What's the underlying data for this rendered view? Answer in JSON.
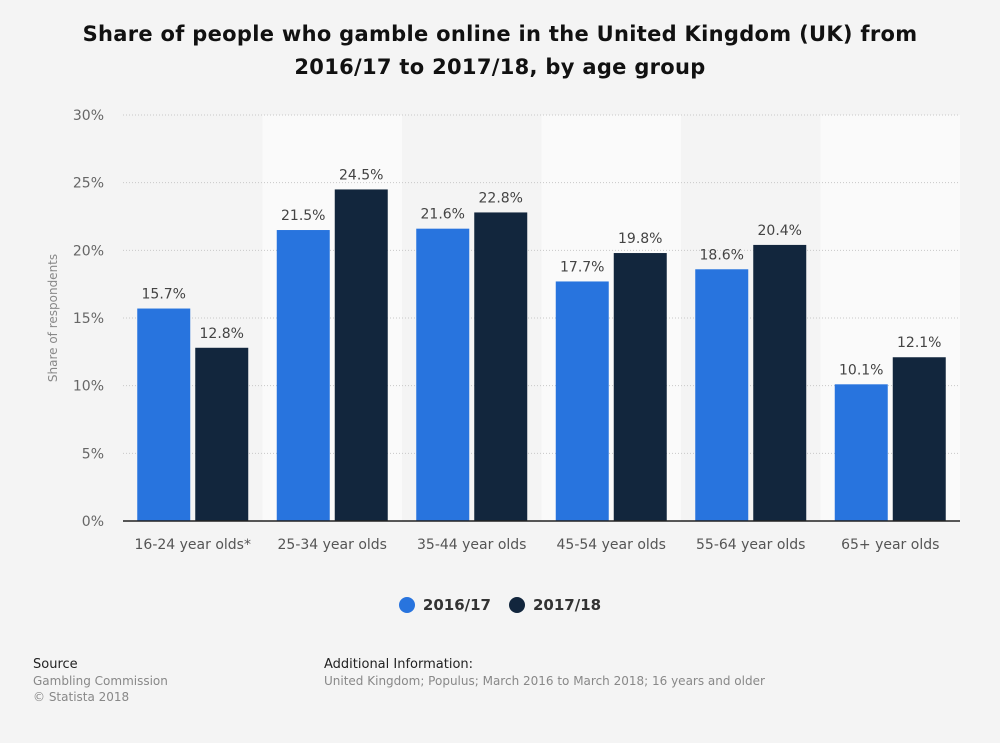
{
  "title_line1": "Share of people who gamble online in the United Kingdom (UK) from",
  "title_line2": "2016/17 to 2017/18, by age group",
  "source": {
    "heading": "Source",
    "line1": "Gambling Commission",
    "line2": "© Statista 2018"
  },
  "additional": {
    "heading": "Additional Information:",
    "text": "United Kingdom; Populus; March 2016 to March 2018; 16 years and older"
  },
  "chart_data": {
    "type": "bar",
    "ylabel": "Share of respondents",
    "xlabel": "",
    "ylim": [
      0,
      30
    ],
    "yticks": [
      "0%",
      "5%",
      "10%",
      "15%",
      "20%",
      "25%",
      "30%"
    ],
    "categories": [
      "16-24 year olds*",
      "25-34 year olds",
      "35-44 year olds",
      "45-54 year olds",
      "55-64 year olds",
      "65+ year olds"
    ],
    "series": [
      {
        "name": "2016/17",
        "color": "#2874de",
        "values": [
          15.7,
          21.5,
          21.6,
          17.7,
          18.6,
          10.1
        ],
        "labels": [
          "15.7%",
          "21.5%",
          "21.6%",
          "17.7%",
          "18.6%",
          "10.1%"
        ]
      },
      {
        "name": "2017/18",
        "color": "#12263d",
        "values": [
          12.8,
          24.5,
          22.8,
          19.8,
          20.4,
          12.1
        ],
        "labels": [
          "12.8%",
          "24.5%",
          "22.8%",
          "19.8%",
          "20.4%",
          "12.1%"
        ]
      }
    ],
    "legend_position": "bottom",
    "grid": true
  }
}
